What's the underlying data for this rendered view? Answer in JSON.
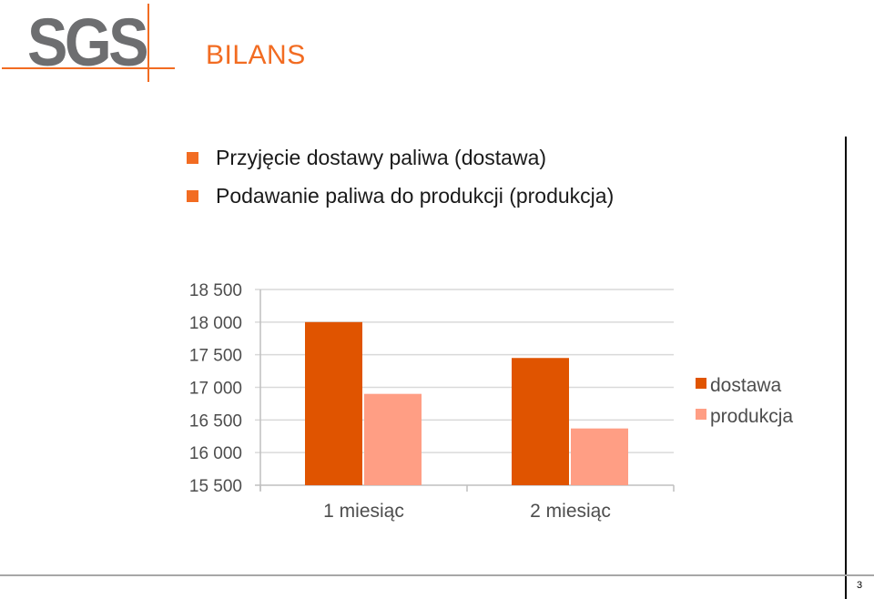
{
  "header": {
    "logo_text": "SGS",
    "title": "BILANS"
  },
  "bullets": [
    "Przyjęcie dostawy paliwa (dostawa)",
    "Podawanie paliwa do produkcji (produkcja)"
  ],
  "footer": {
    "page_number": "3"
  },
  "colors": {
    "accent": "#f26c22",
    "dostawa": "#e05400",
    "produkcja": "#ff9e84",
    "gridline": "#d9d9d9",
    "axis": "#bfbfbf"
  },
  "chart_data": {
    "type": "bar",
    "categories": [
      "1 miesiąc",
      "2 miesiąc"
    ],
    "series": [
      {
        "name": "dostawa",
        "values": [
          18000,
          17450
        ]
      },
      {
        "name": "produkcja",
        "values": [
          16900,
          16370
        ]
      }
    ],
    "ylim": [
      15500,
      18500
    ],
    "ytick_values": [
      15500,
      16000,
      16500,
      17000,
      17500,
      18000,
      18500
    ],
    "ytick_labels": [
      "15 500",
      "16 000",
      "16 500",
      "17 000",
      "17 500",
      "18 000",
      "18 500"
    ],
    "grid": true,
    "legend_position": "right",
    "title": "",
    "xlabel": "",
    "ylabel": ""
  }
}
